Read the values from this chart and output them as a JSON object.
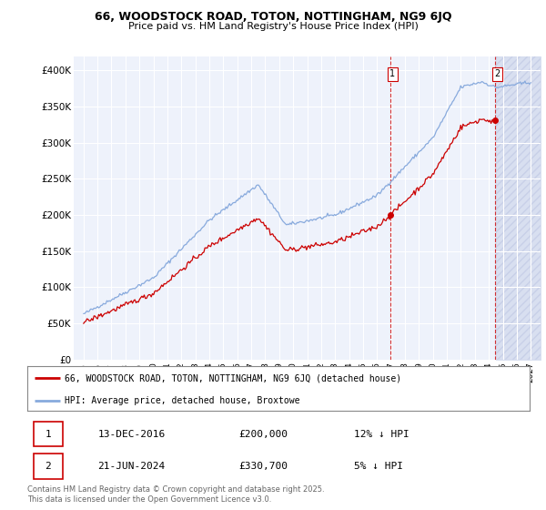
{
  "title": "66, WOODSTOCK ROAD, TOTON, NOTTINGHAM, NG9 6JQ",
  "subtitle": "Price paid vs. HM Land Registry's House Price Index (HPI)",
  "ylabel_ticks": [
    "£0",
    "£50K",
    "£100K",
    "£150K",
    "£200K",
    "£250K",
    "£300K",
    "£350K",
    "£400K"
  ],
  "ytick_values": [
    0,
    50000,
    100000,
    150000,
    200000,
    250000,
    300000,
    350000,
    400000
  ],
  "ylim": [
    0,
    420000
  ],
  "sale1_date": "13-DEC-2016",
  "sale1_price": 200000,
  "sale1_price_str": "£200,000",
  "sale1_hpi_diff": "12% ↓ HPI",
  "sale1_year": 2016.96,
  "sale2_date": "21-JUN-2024",
  "sale2_price": 330700,
  "sale2_price_str": "£330,700",
  "sale2_hpi_diff": "5% ↓ HPI",
  "sale2_year": 2024.46,
  "legend_line1": "66, WOODSTOCK ROAD, TOTON, NOTTINGHAM, NG9 6JQ (detached house)",
  "legend_line2": "HPI: Average price, detached house, Broxtowe",
  "footer": "Contains HM Land Registry data © Crown copyright and database right 2025.\nThis data is licensed under the Open Government Licence v3.0.",
  "line_color_price": "#cc0000",
  "line_color_hpi": "#88aadd",
  "background_color": "#eef2fb",
  "shade_color": "#d8dff0",
  "grid_color": "#ffffff",
  "start_year": 1995,
  "end_year": 2027,
  "x_tick_years": [
    1995,
    1996,
    1997,
    1998,
    1999,
    2000,
    2001,
    2002,
    2003,
    2004,
    2005,
    2006,
    2007,
    2008,
    2009,
    2010,
    2011,
    2012,
    2013,
    2014,
    2015,
    2016,
    2017,
    2018,
    2019,
    2020,
    2021,
    2022,
    2023,
    2024,
    2025,
    2026,
    2027
  ]
}
